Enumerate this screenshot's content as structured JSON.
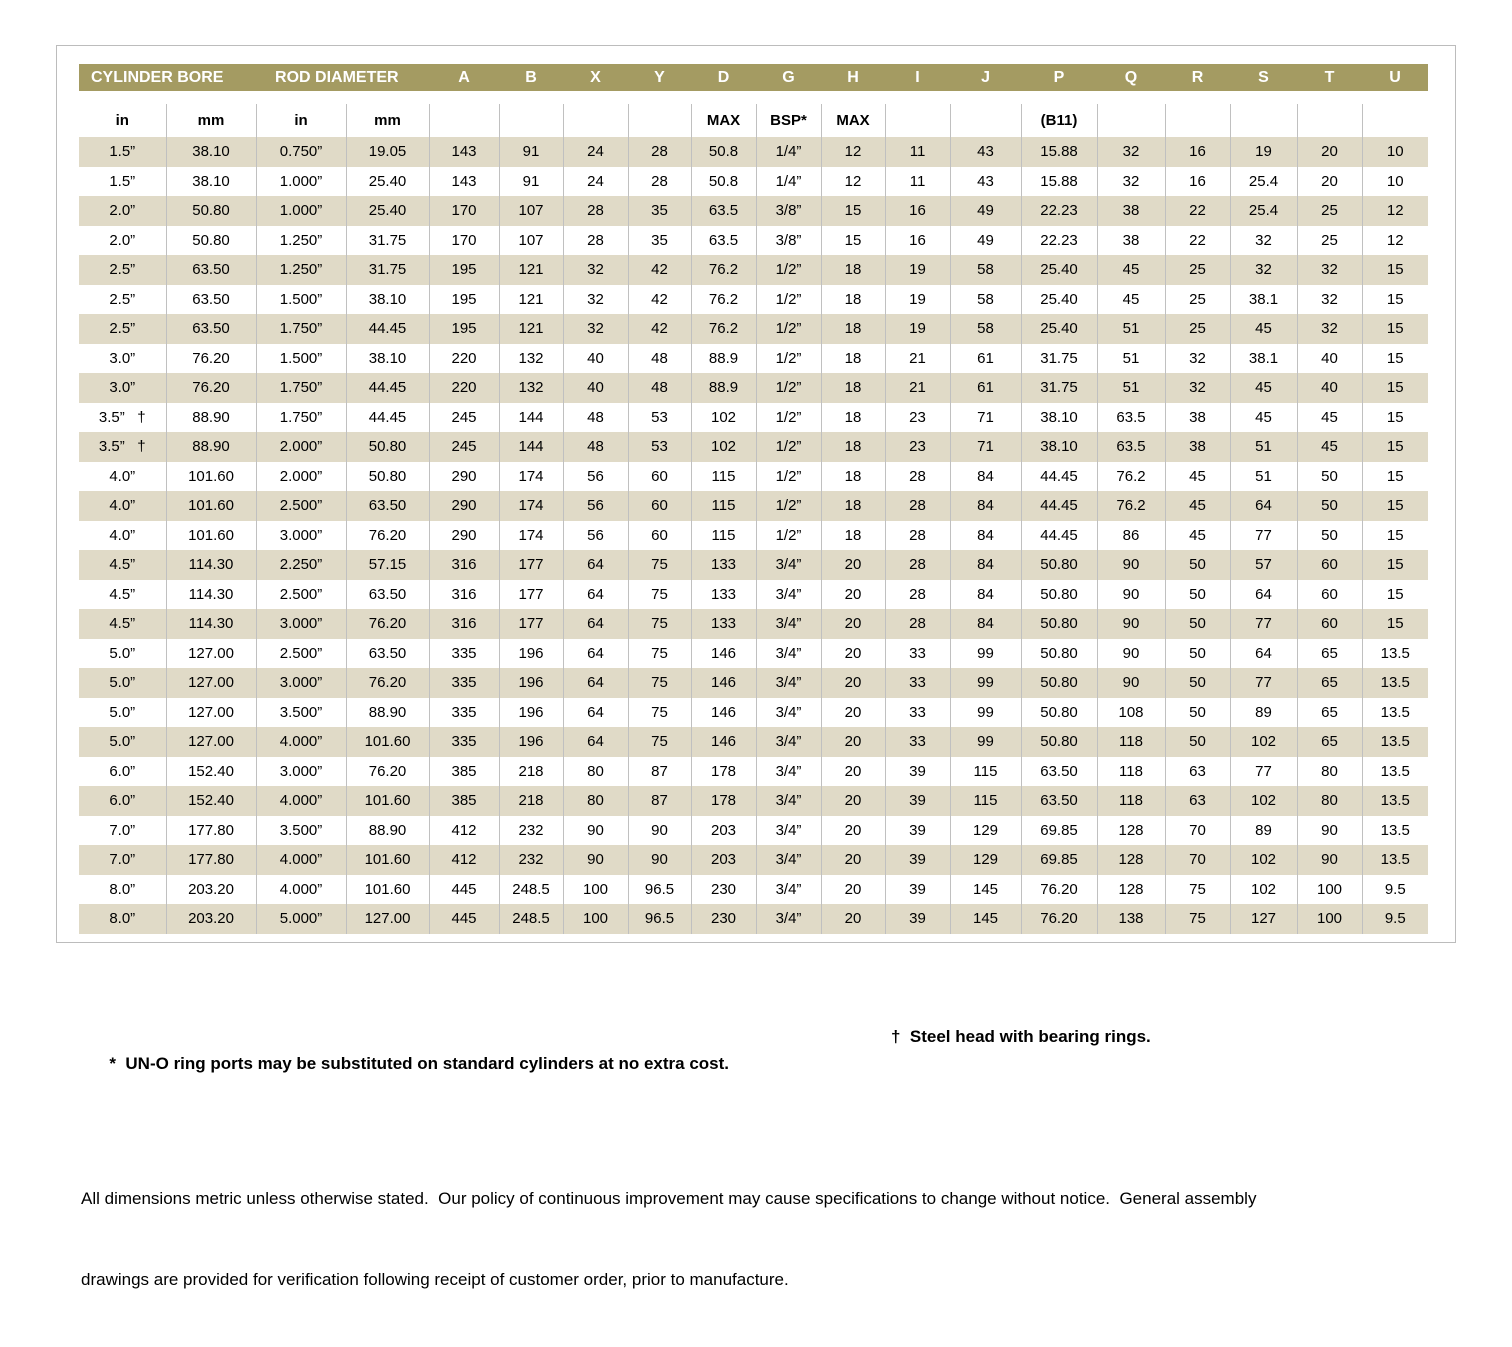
{
  "table": {
    "header": {
      "cylinder_bore": "CYLINDER BORE",
      "rod_diameter": "ROD DIAMETER",
      "dims": [
        "A",
        "B",
        "X",
        "Y",
        "D",
        "G",
        "H",
        "I",
        "J",
        "P",
        "Q",
        "R",
        "S",
        "T",
        "U"
      ]
    },
    "subheader": [
      "in",
      "mm",
      "in",
      "mm",
      "",
      "",
      "",
      "",
      "MAX",
      "BSP*",
      "MAX",
      "",
      "",
      "(B11)",
      "",
      "",
      "",
      "",
      ""
    ],
    "rows": [
      [
        "1.5”",
        "38.10",
        "0.750”",
        "19.05",
        "143",
        "91",
        "24",
        "28",
        "50.8",
        "1/4”",
        "12",
        "11",
        "43",
        "15.88",
        "32",
        "16",
        "19",
        "20",
        "10"
      ],
      [
        "1.5”",
        "38.10",
        "1.000”",
        "25.40",
        "143",
        "91",
        "24",
        "28",
        "50.8",
        "1/4”",
        "12",
        "11",
        "43",
        "15.88",
        "32",
        "16",
        "25.4",
        "20",
        "10"
      ],
      [
        "2.0”",
        "50.80",
        "1.000”",
        "25.40",
        "170",
        "107",
        "28",
        "35",
        "63.5",
        "3/8”",
        "15",
        "16",
        "49",
        "22.23",
        "38",
        "22",
        "25.4",
        "25",
        "12"
      ],
      [
        "2.0”",
        "50.80",
        "1.250”",
        "31.75",
        "170",
        "107",
        "28",
        "35",
        "63.5",
        "3/8”",
        "15",
        "16",
        "49",
        "22.23",
        "38",
        "22",
        "32",
        "25",
        "12"
      ],
      [
        "2.5”",
        "63.50",
        "1.250”",
        "31.75",
        "195",
        "121",
        "32",
        "42",
        "76.2",
        "1/2”",
        "18",
        "19",
        "58",
        "25.40",
        "45",
        "25",
        "32",
        "32",
        "15"
      ],
      [
        "2.5”",
        "63.50",
        "1.500”",
        "38.10",
        "195",
        "121",
        "32",
        "42",
        "76.2",
        "1/2”",
        "18",
        "19",
        "58",
        "25.40",
        "45",
        "25",
        "38.1",
        "32",
        "15"
      ],
      [
        "2.5”",
        "63.50",
        "1.750”",
        "44.45",
        "195",
        "121",
        "32",
        "42",
        "76.2",
        "1/2”",
        "18",
        "19",
        "58",
        "25.40",
        "51",
        "25",
        "45",
        "32",
        "15"
      ],
      [
        "3.0”",
        "76.20",
        "1.500”",
        "38.10",
        "220",
        "132",
        "40",
        "48",
        "88.9",
        "1/2”",
        "18",
        "21",
        "61",
        "31.75",
        "51",
        "32",
        "38.1",
        "40",
        "15"
      ],
      [
        "3.0”",
        "76.20",
        "1.750”",
        "44.45",
        "220",
        "132",
        "40",
        "48",
        "88.9",
        "1/2”",
        "18",
        "21",
        "61",
        "31.75",
        "51",
        "32",
        "45",
        "40",
        "15"
      ],
      [
        "3.5”   †",
        "88.90",
        "1.750”",
        "44.45",
        "245",
        "144",
        "48",
        "53",
        "102",
        "1/2”",
        "18",
        "23",
        "71",
        "38.10",
        "63.5",
        "38",
        "45",
        "45",
        "15"
      ],
      [
        "3.5”   †",
        "88.90",
        "2.000”",
        "50.80",
        "245",
        "144",
        "48",
        "53",
        "102",
        "1/2”",
        "18",
        "23",
        "71",
        "38.10",
        "63.5",
        "38",
        "51",
        "45",
        "15"
      ],
      [
        "4.0”",
        "101.60",
        "2.000”",
        "50.80",
        "290",
        "174",
        "56",
        "60",
        "115",
        "1/2”",
        "18",
        "28",
        "84",
        "44.45",
        "76.2",
        "45",
        "51",
        "50",
        "15"
      ],
      [
        "4.0”",
        "101.60",
        "2.500”",
        "63.50",
        "290",
        "174",
        "56",
        "60",
        "115",
        "1/2”",
        "18",
        "28",
        "84",
        "44.45",
        "76.2",
        "45",
        "64",
        "50",
        "15"
      ],
      [
        "4.0”",
        "101.60",
        "3.000”",
        "76.20",
        "290",
        "174",
        "56",
        "60",
        "115",
        "1/2”",
        "18",
        "28",
        "84",
        "44.45",
        "86",
        "45",
        "77",
        "50",
        "15"
      ],
      [
        "4.5”",
        "114.30",
        "2.250”",
        "57.15",
        "316",
        "177",
        "64",
        "75",
        "133",
        "3/4”",
        "20",
        "28",
        "84",
        "50.80",
        "90",
        "50",
        "57",
        "60",
        "15"
      ],
      [
        "4.5”",
        "114.30",
        "2.500”",
        "63.50",
        "316",
        "177",
        "64",
        "75",
        "133",
        "3/4”",
        "20",
        "28",
        "84",
        "50.80",
        "90",
        "50",
        "64",
        "60",
        "15"
      ],
      [
        "4.5”",
        "114.30",
        "3.000”",
        "76.20",
        "316",
        "177",
        "64",
        "75",
        "133",
        "3/4”",
        "20",
        "28",
        "84",
        "50.80",
        "90",
        "50",
        "77",
        "60",
        "15"
      ],
      [
        "5.0”",
        "127.00",
        "2.500”",
        "63.50",
        "335",
        "196",
        "64",
        "75",
        "146",
        "3/4”",
        "20",
        "33",
        "99",
        "50.80",
        "90",
        "50",
        "64",
        "65",
        "13.5"
      ],
      [
        "5.0”",
        "127.00",
        "3.000”",
        "76.20",
        "335",
        "196",
        "64",
        "75",
        "146",
        "3/4”",
        "20",
        "33",
        "99",
        "50.80",
        "90",
        "50",
        "77",
        "65",
        "13.5"
      ],
      [
        "5.0”",
        "127.00",
        "3.500”",
        "88.90",
        "335",
        "196",
        "64",
        "75",
        "146",
        "3/4”",
        "20",
        "33",
        "99",
        "50.80",
        "108",
        "50",
        "89",
        "65",
        "13.5"
      ],
      [
        "5.0”",
        "127.00",
        "4.000”",
        "101.60",
        "335",
        "196",
        "64",
        "75",
        "146",
        "3/4”",
        "20",
        "33",
        "99",
        "50.80",
        "118",
        "50",
        "102",
        "65",
        "13.5"
      ],
      [
        "6.0”",
        "152.40",
        "3.000”",
        "76.20",
        "385",
        "218",
        "80",
        "87",
        "178",
        "3/4”",
        "20",
        "39",
        "115",
        "63.50",
        "118",
        "63",
        "77",
        "80",
        "13.5"
      ],
      [
        "6.0”",
        "152.40",
        "4.000”",
        "101.60",
        "385",
        "218",
        "80",
        "87",
        "178",
        "3/4”",
        "20",
        "39",
        "115",
        "63.50",
        "118",
        "63",
        "102",
        "80",
        "13.5"
      ],
      [
        "7.0”",
        "177.80",
        "3.500”",
        "88.90",
        "412",
        "232",
        "90",
        "90",
        "203",
        "3/4”",
        "20",
        "39",
        "129",
        "69.85",
        "128",
        "70",
        "89",
        "90",
        "13.5"
      ],
      [
        "7.0”",
        "177.80",
        "4.000”",
        "101.60",
        "412",
        "232",
        "90",
        "90",
        "203",
        "3/4”",
        "20",
        "39",
        "129",
        "69.85",
        "128",
        "70",
        "102",
        "90",
        "13.5"
      ],
      [
        "8.0”",
        "203.20",
        "4.000”",
        "101.60",
        "445",
        "248.5",
        "100",
        "96.5",
        "230",
        "3/4”",
        "20",
        "39",
        "145",
        "76.20",
        "128",
        "75",
        "102",
        "100",
        "9.5"
      ],
      [
        "8.0”",
        "203.20",
        "5.000”",
        "127.00",
        "445",
        "248.5",
        "100",
        "96.5",
        "230",
        "3/4”",
        "20",
        "39",
        "145",
        "76.20",
        "138",
        "75",
        "127",
        "100",
        "9.5"
      ]
    ]
  },
  "notes": {
    "star": "*  UN-O ring ports may be substituted on standard cylinders at no extra cost.",
    "dagger": "†  Steel head with bearing rings.",
    "line2": "All dimensions metric unless otherwise stated.  Our policy of continuous improvement may cause specifications to change without notice.  General assembly",
    "line3": "drawings are provided for verification following receipt of customer order, prior to manufacture."
  },
  "colors": {
    "header_band": "#a49b62",
    "stripe": "#e0dac7",
    "separator": "#c0c0c0",
    "panel_border": "#bcbcbc",
    "header_text": "#ffffff",
    "body_text": "#000000"
  }
}
